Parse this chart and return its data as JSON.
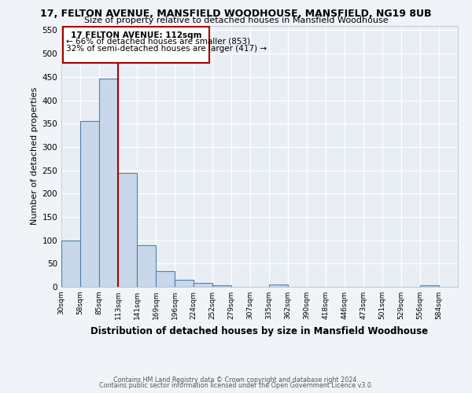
{
  "title1": "17, FELTON AVENUE, MANSFIELD WOODHOUSE, MANSFIELD, NG19 8UB",
  "title2": "Size of property relative to detached houses in Mansfield Woodhouse",
  "xlabel": "Distribution of detached houses by size in Mansfield Woodhouse",
  "ylabel": "Number of detached properties",
  "bin_labels": [
    "30sqm",
    "58sqm",
    "85sqm",
    "113sqm",
    "141sqm",
    "169sqm",
    "196sqm",
    "224sqm",
    "252sqm",
    "279sqm",
    "307sqm",
    "335sqm",
    "362sqm",
    "390sqm",
    "418sqm",
    "446sqm",
    "473sqm",
    "501sqm",
    "529sqm",
    "556sqm",
    "584sqm"
  ],
  "bar_heights": [
    100,
    355,
    447,
    245,
    90,
    33,
    15,
    8,
    4,
    0,
    0,
    5,
    0,
    0,
    0,
    0,
    0,
    0,
    0,
    4,
    0
  ],
  "bar_color": "#c8d8ea",
  "bar_edge_color": "#4f7faa",
  "property_line_label": "17 FELTON AVENUE: 112sqm",
  "annotation_line1": "← 66% of detached houses are smaller (853)",
  "annotation_line2": "32% of semi-detached houses are larger (417) →",
  "box_color": "#aa0000",
  "ylim": [
    0,
    560
  ],
  "yticks": [
    0,
    50,
    100,
    150,
    200,
    250,
    300,
    350,
    400,
    450,
    500,
    550
  ],
  "footer1": "Contains HM Land Registry data © Crown copyright and database right 2024.",
  "footer2": "Contains public sector information licensed under the Open Government Licence v3.0.",
  "bg_color": "#f0f4f8",
  "plot_bg_color": "#e8eef4",
  "grid_color": "#ffffff",
  "prop_line_bin_index": 3
}
